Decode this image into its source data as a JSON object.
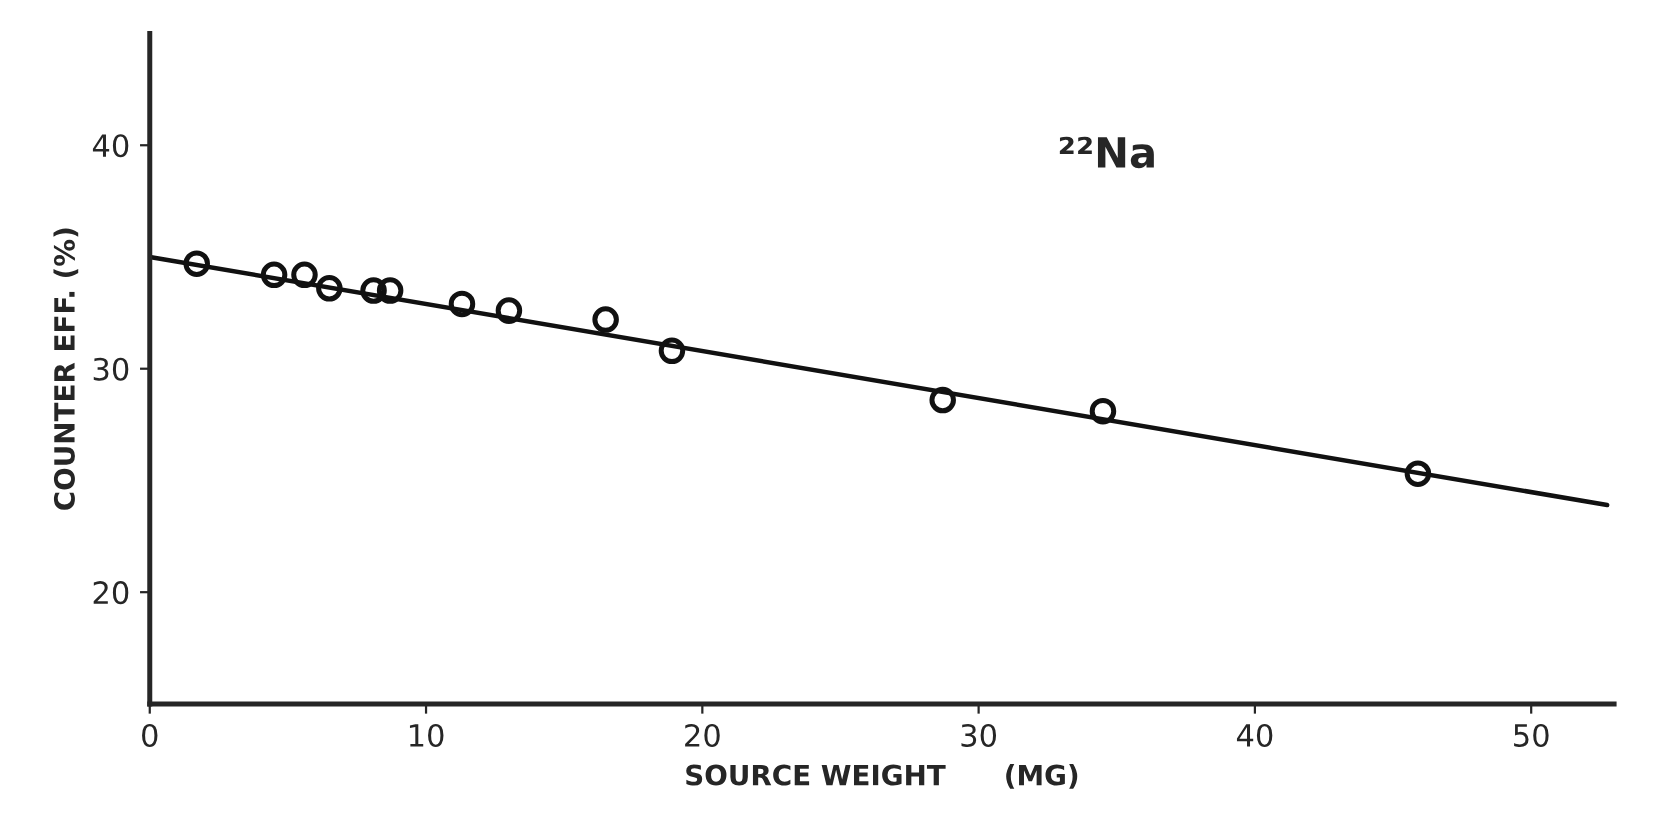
{
  "chart_data": {
    "type": "scatter",
    "xlabel": "SOURCE WEIGHT      (MG)",
    "ylabel": "COUNTER EFF. (%)",
    "annotations": [
      "²²Na"
    ],
    "xlim": [
      0,
      53
    ],
    "xticks": [
      0,
      10,
      20,
      30,
      40,
      50
    ],
    "ylim": [
      15,
      45
    ],
    "yticks": [
      20,
      30,
      40
    ],
    "grid": false,
    "series": [
      {
        "marker": "circle",
        "color": "#111111",
        "x": [
          1.7,
          4.5,
          5.6,
          6.5,
          8.1,
          8.7,
          11.3,
          13.0,
          16.5,
          18.9,
          28.7,
          34.5,
          45.9
        ],
        "values": [
          34.7,
          34.2,
          34.2,
          33.6,
          33.5,
          33.5,
          32.9,
          32.6,
          32.2,
          30.8,
          28.6,
          28.1,
          25.3
        ]
      },
      {
        "type": "line",
        "color": "#111111",
        "line_style": "solid",
        "x": [
          0,
          52.75
        ],
        "values": [
          35.0,
          23.9
        ]
      }
    ]
  }
}
